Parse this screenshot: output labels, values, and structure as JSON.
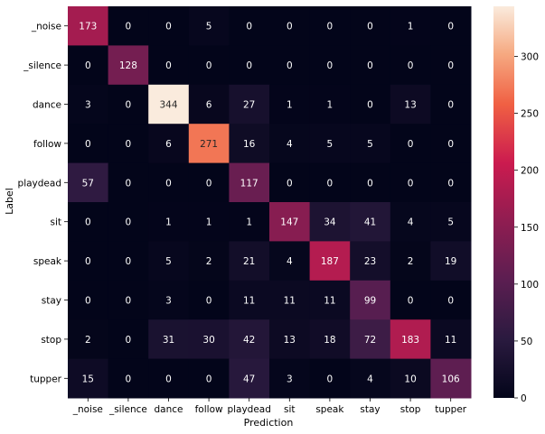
{
  "chart_data": {
    "type": "heatmap",
    "title": "",
    "xlabel": "Prediction",
    "ylabel": "Label",
    "x_categories": [
      "_noise",
      "_silence",
      "dance",
      "follow",
      "playdead",
      "sit",
      "speak",
      "stay",
      "stop",
      "tupper"
    ],
    "y_categories": [
      "_noise",
      "_silence",
      "dance",
      "follow",
      "playdead",
      "sit",
      "speak",
      "stay",
      "stop",
      "tupper"
    ],
    "values": [
      [
        173,
        0,
        0,
        5,
        0,
        0,
        0,
        0,
        1,
        0
      ],
      [
        0,
        128,
        0,
        0,
        0,
        0,
        0,
        0,
        0,
        0
      ],
      [
        3,
        0,
        344,
        6,
        27,
        1,
        1,
        0,
        13,
        0
      ],
      [
        0,
        0,
        6,
        271,
        16,
        4,
        5,
        5,
        0,
        0
      ],
      [
        57,
        0,
        0,
        0,
        117,
        0,
        0,
        0,
        0,
        0
      ],
      [
        0,
        0,
        1,
        1,
        1,
        147,
        34,
        41,
        4,
        5
      ],
      [
        0,
        0,
        5,
        2,
        21,
        4,
        187,
        23,
        2,
        19
      ],
      [
        0,
        0,
        3,
        0,
        11,
        11,
        11,
        99,
        0,
        0
      ],
      [
        2,
        0,
        31,
        30,
        42,
        13,
        18,
        72,
        183,
        11
      ],
      [
        15,
        0,
        0,
        0,
        47,
        3,
        0,
        4,
        10,
        106
      ]
    ],
    "colorbar": {
      "range": [
        0,
        344
      ],
      "ticks": [
        0,
        50,
        100,
        150,
        200,
        250,
        300
      ],
      "colormap": "rocket"
    },
    "grid": false,
    "legend": "colorbar-right"
  }
}
